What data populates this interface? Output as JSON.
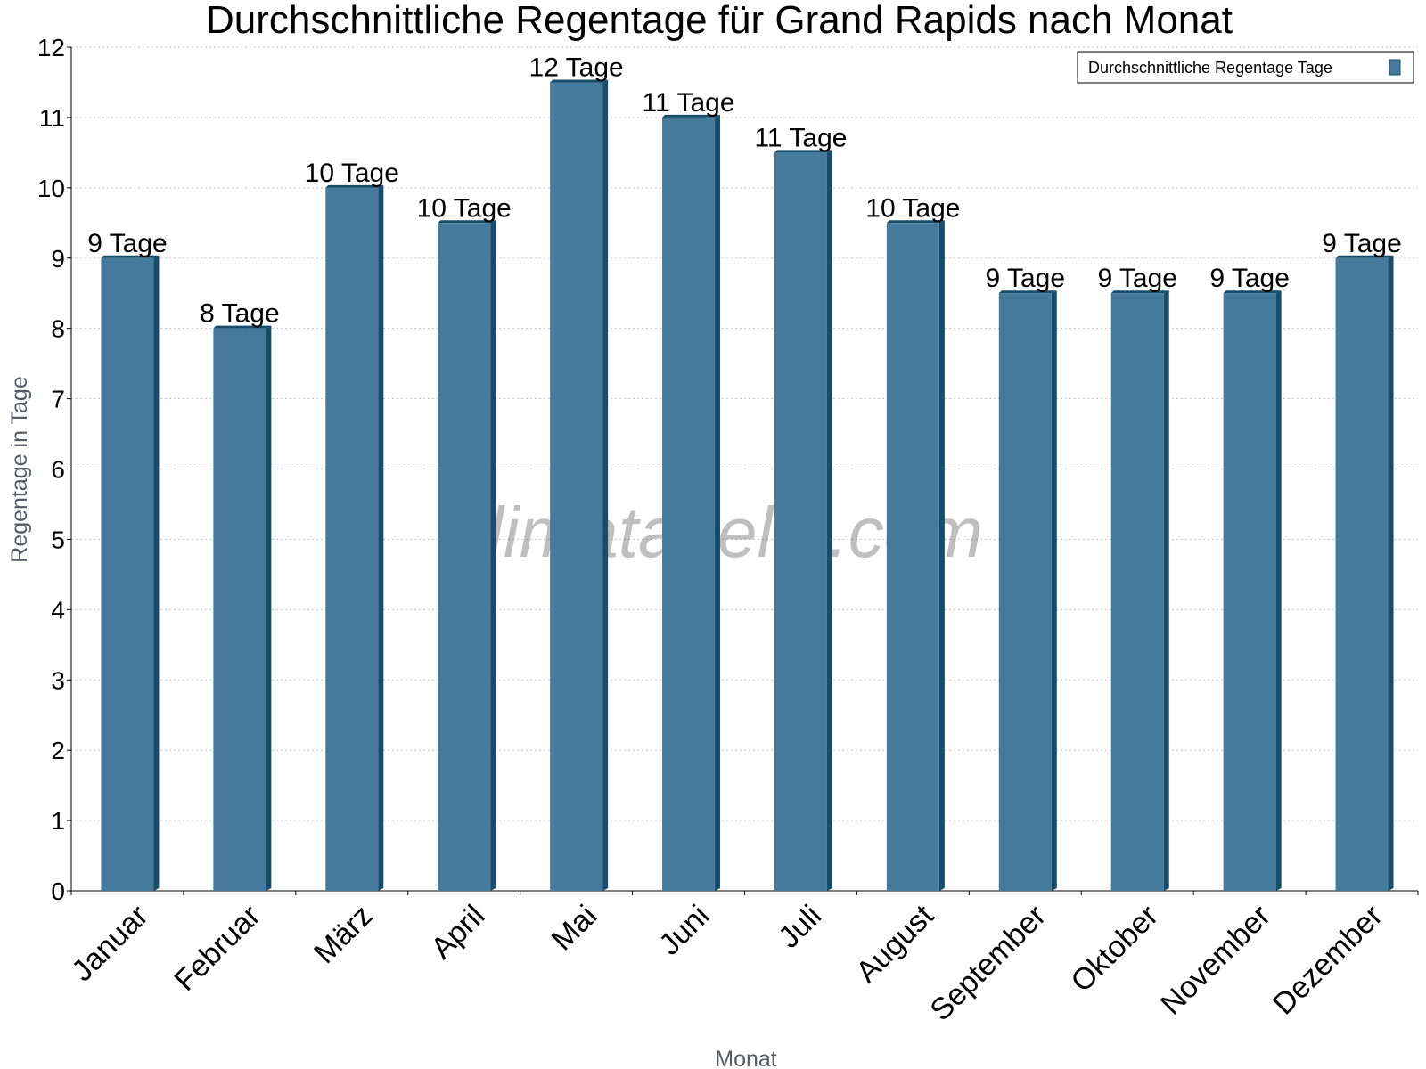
{
  "chart_data": {
    "type": "bar",
    "title": "Durchschnittliche Regentage für Grand Rapids nach Monat",
    "xlabel": "Monat",
    "ylabel": "Regentage in Tage",
    "ylim": [
      0,
      12
    ],
    "yticks": [
      "0",
      "1",
      "2",
      "3",
      "4",
      "5",
      "6",
      "7",
      "8",
      "9",
      "10",
      "11",
      "12"
    ],
    "grid": true,
    "legend_position": "top-right",
    "categories": [
      "Januar",
      "Februar",
      "März",
      "April",
      "Mai",
      "Juni",
      "Juli",
      "August",
      "September",
      "Oktober",
      "November",
      "Dezember"
    ],
    "series": [
      {
        "name": "Durchschnittliche Regentage Tage",
        "values": [
          9,
          8,
          10,
          9.5,
          11.5,
          11,
          10.5,
          9.5,
          8.5,
          8.5,
          8.5,
          9
        ],
        "labels": [
          "9 Tage",
          "8 Tage",
          "10 Tage",
          "10 Tage",
          "12 Tage",
          "11 Tage",
          "11 Tage",
          "10 Tage",
          "9 Tage",
          "9 Tage",
          "9 Tage",
          "9 Tage"
        ],
        "color": "#467a9c",
        "edge_color": "#174c6b"
      }
    ]
  },
  "watermark": "klimatabelle.com"
}
